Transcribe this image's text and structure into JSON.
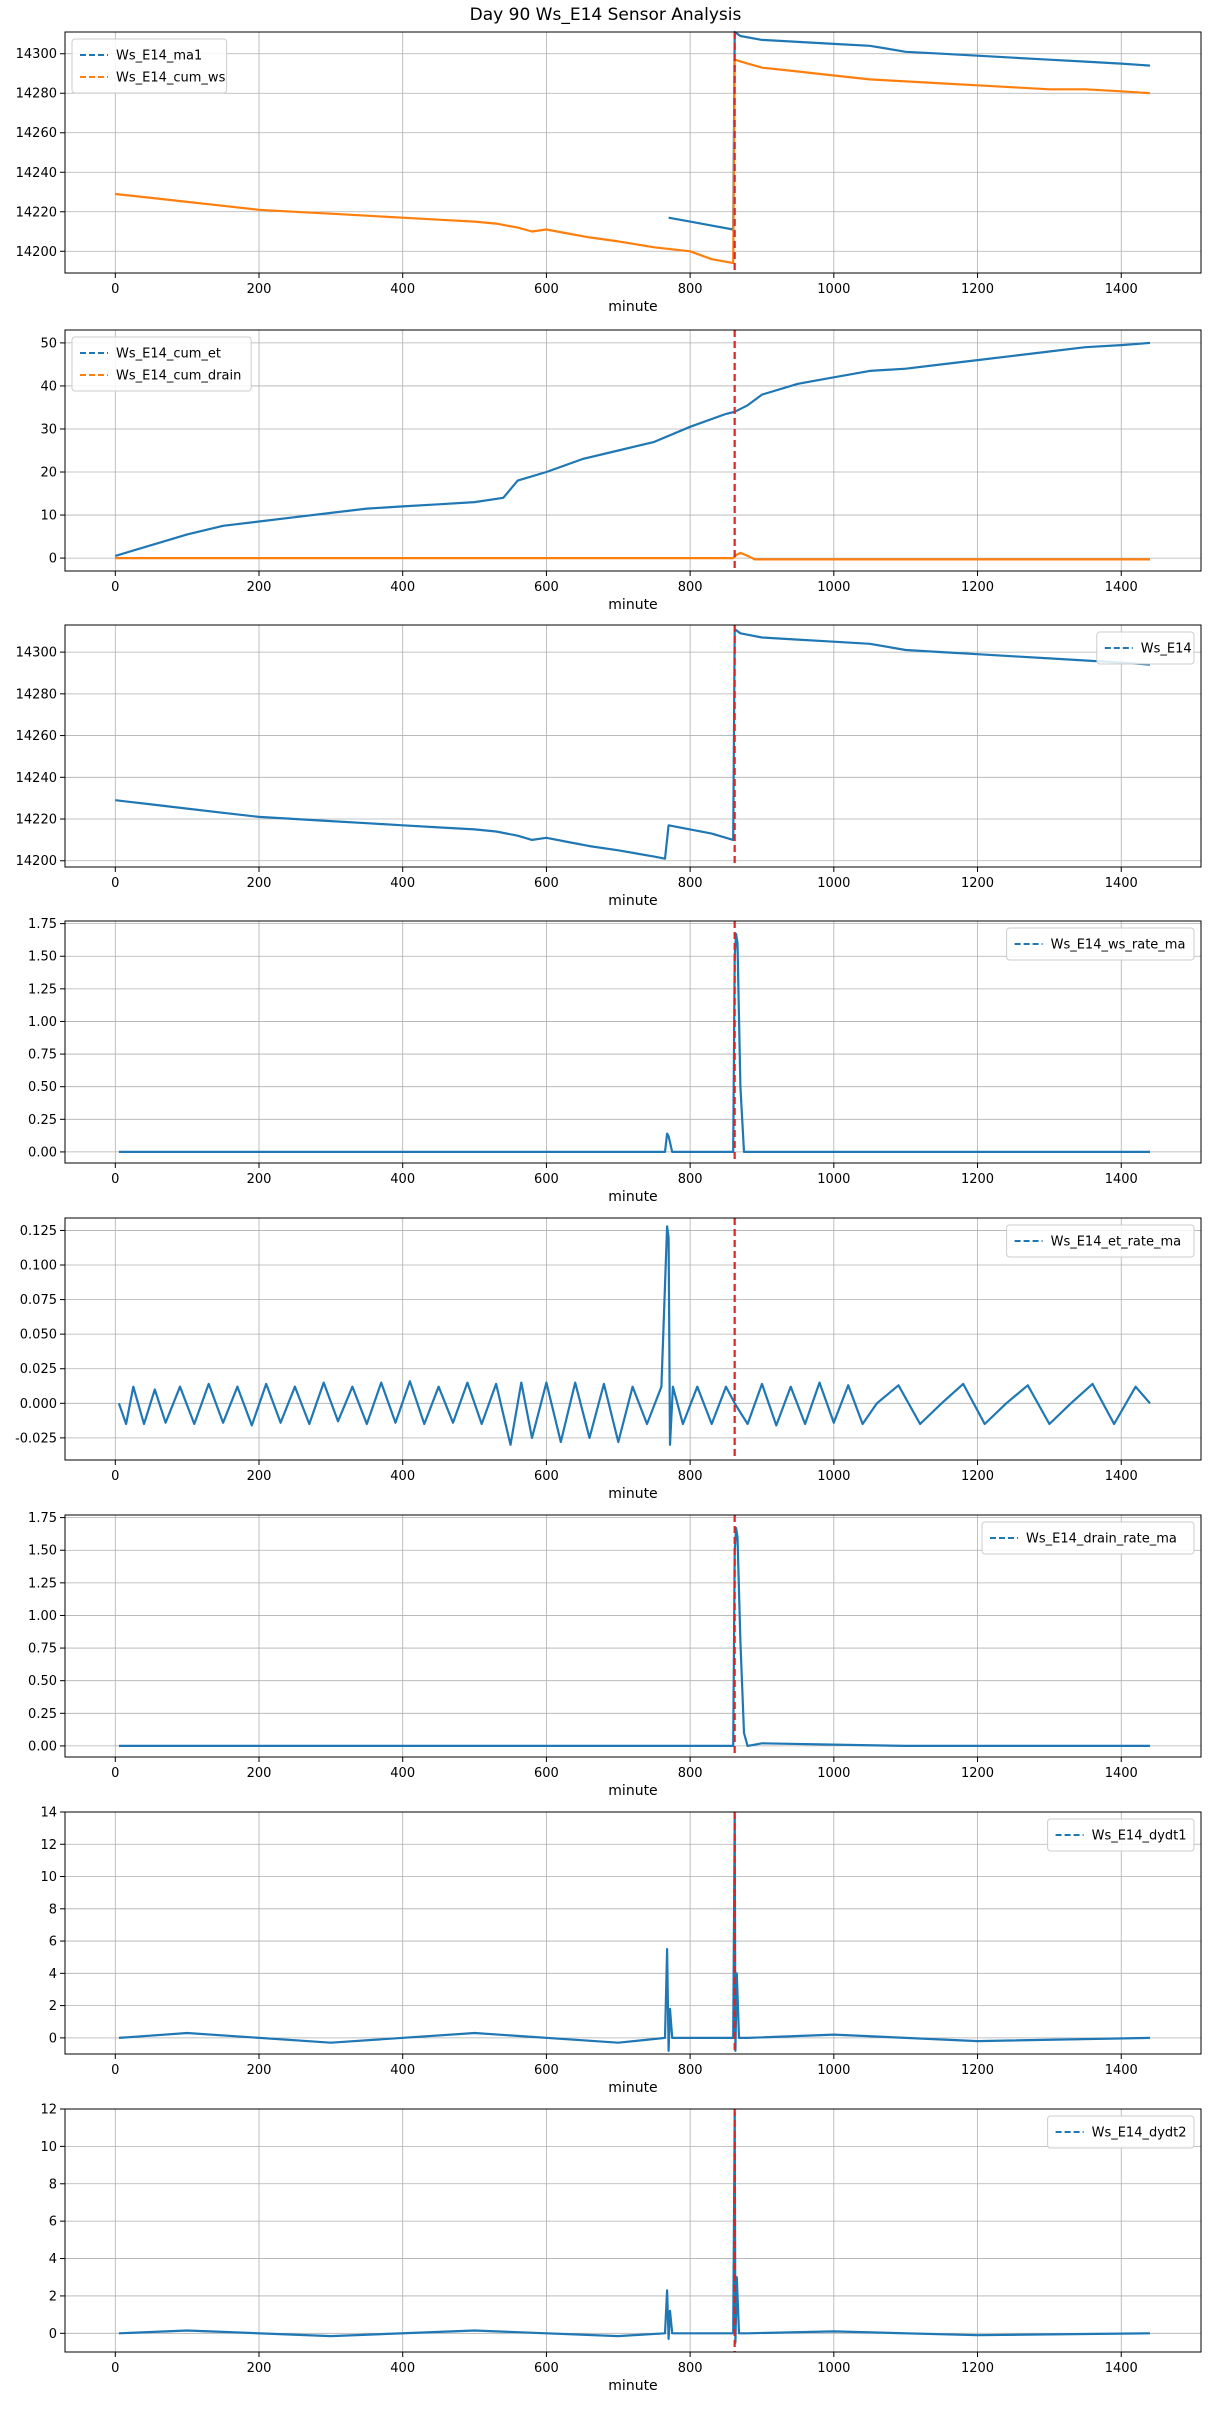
{
  "figure": {
    "title": "Day 90 Ws_E14 Sensor Analysis",
    "event_minute": 862,
    "colors": {
      "series1": "#1f77b4",
      "series2": "#ff7f0e",
      "event_line": "#d62728",
      "grid": "#b0b0b0"
    }
  },
  "chart_data": [
    {
      "type": "line",
      "xlabel": "minute",
      "xlim": [
        -70,
        1511
      ],
      "xticks": [
        0,
        200,
        400,
        600,
        800,
        1000,
        1200,
        1400
      ],
      "ylim": [
        14189,
        14311
      ],
      "yticks": [
        14200,
        14220,
        14240,
        14260,
        14280,
        14300
      ],
      "legend_position": "upper-left",
      "series": [
        {
          "name": "Ws_E14_ma1",
          "color": "#1f77b4",
          "x": [
            770,
            800,
            830,
            860,
            862,
            870,
            900,
            950,
            1000,
            1050,
            1100,
            1150,
            1200,
            1250,
            1300,
            1350,
            1400,
            1440
          ],
          "y": [
            14217,
            14215,
            14213,
            14211,
            14311,
            14309,
            14307,
            14306,
            14305,
            14304,
            14301,
            14300,
            14299,
            14298,
            14297,
            14296,
            14295,
            14294
          ]
        },
        {
          "name": "Ws_E14_cum_ws",
          "color": "#ff7f0e",
          "x": [
            0,
            50,
            100,
            150,
            200,
            250,
            300,
            350,
            400,
            450,
            500,
            530,
            560,
            580,
            600,
            630,
            660,
            700,
            750,
            800,
            830,
            860,
            862,
            880,
            900,
            950,
            1000,
            1050,
            1100,
            1150,
            1200,
            1250,
            1300,
            1350,
            1400,
            1440
          ],
          "y": [
            14229,
            14227,
            14225,
            14223,
            14221,
            14220,
            14219,
            14218,
            14217,
            14216,
            14215,
            14214,
            14212,
            14210,
            14211,
            14209,
            14207,
            14205,
            14202,
            14200,
            14196,
            14194,
            14297,
            14295,
            14293,
            14291,
            14289,
            14287,
            14286,
            14285,
            14284,
            14283,
            14282,
            14282,
            14281,
            14280
          ]
        }
      ]
    },
    {
      "type": "line",
      "xlabel": "minute",
      "xlim": [
        -70,
        1511
      ],
      "xticks": [
        0,
        200,
        400,
        600,
        800,
        1000,
        1200,
        1400
      ],
      "ylim": [
        -3,
        53
      ],
      "yticks": [
        0,
        10,
        20,
        30,
        40,
        50
      ],
      "legend_position": "upper-left",
      "series": [
        {
          "name": "Ws_E14_cum_et",
          "color": "#1f77b4",
          "x": [
            0,
            50,
            100,
            150,
            200,
            250,
            300,
            350,
            400,
            450,
            500,
            540,
            560,
            600,
            650,
            700,
            750,
            800,
            850,
            862,
            880,
            900,
            950,
            1000,
            1050,
            1100,
            1150,
            1200,
            1250,
            1300,
            1350,
            1400,
            1440
          ],
          "y": [
            0.5,
            3,
            5.5,
            7.5,
            8.5,
            9.5,
            10.5,
            11.5,
            12,
            12.5,
            13,
            14,
            18,
            20,
            23,
            25,
            27,
            30.5,
            33.5,
            34,
            35.5,
            38,
            40.5,
            42,
            43.5,
            44,
            45,
            46,
            47,
            48,
            49,
            49.5,
            50
          ]
        },
        {
          "name": "Ws_E14_cum_drain",
          "color": "#ff7f0e",
          "x": [
            0,
            200,
            400,
            600,
            800,
            860,
            865,
            870,
            880,
            890,
            900,
            1000,
            1200,
            1440
          ],
          "y": [
            0,
            0,
            0,
            0,
            0,
            0,
            0.8,
            1.2,
            0.5,
            -0.3,
            -0.3,
            -0.3,
            -0.3,
            -0.3
          ]
        }
      ]
    },
    {
      "type": "line",
      "xlabel": "minute",
      "xlim": [
        -70,
        1511
      ],
      "xticks": [
        0,
        200,
        400,
        600,
        800,
        1000,
        1200,
        1400
      ],
      "ylim": [
        14197,
        14313
      ],
      "yticks": [
        14200,
        14220,
        14240,
        14260,
        14280,
        14300
      ],
      "legend_position": "upper-right",
      "series": [
        {
          "name": "Ws_E14",
          "color": "#1f77b4",
          "x": [
            0,
            50,
            100,
            150,
            200,
            250,
            300,
            350,
            400,
            450,
            500,
            530,
            560,
            580,
            600,
            630,
            660,
            700,
            750,
            765,
            770,
            800,
            830,
            860,
            862,
            870,
            900,
            950,
            1000,
            1050,
            1100,
            1150,
            1200,
            1250,
            1300,
            1350,
            1400,
            1440
          ],
          "y": [
            14229,
            14227,
            14225,
            14223,
            14221,
            14220,
            14219,
            14218,
            14217,
            14216,
            14215,
            14214,
            14212,
            14210,
            14211,
            14209,
            14207,
            14205,
            14202,
            14201,
            14217,
            14215,
            14213,
            14210,
            14311,
            14309,
            14307,
            14306,
            14305,
            14304,
            14301,
            14300,
            14299,
            14298,
            14297,
            14296,
            14295,
            14294
          ]
        }
      ]
    },
    {
      "type": "line",
      "xlabel": "minute",
      "xlim": [
        -70,
        1511
      ],
      "xticks": [
        0,
        200,
        400,
        600,
        800,
        1000,
        1200,
        1400
      ],
      "ylim": [
        -0.085,
        1.77
      ],
      "yticks": [
        0.0,
        0.25,
        0.5,
        0.75,
        1.0,
        1.25,
        1.5,
        1.75
      ],
      "legend_position": "upper-right",
      "series": [
        {
          "name": "Ws_E14_ws_rate_ma",
          "color": "#1f77b4",
          "x": [
            5,
            200,
            400,
            600,
            765,
            768,
            770,
            775,
            800,
            860,
            862,
            864,
            866,
            870,
            875,
            900,
            1100,
            1300,
            1440
          ],
          "y": [
            0,
            0,
            0,
            0,
            0,
            0.14,
            0.12,
            0,
            0,
            0,
            1.5,
            1.67,
            1.6,
            0.5,
            0,
            0,
            0,
            0,
            0
          ]
        }
      ]
    },
    {
      "type": "line",
      "xlabel": "minute",
      "xlim": [
        -70,
        1511
      ],
      "xticks": [
        0,
        200,
        400,
        600,
        800,
        1000,
        1200,
        1400
      ],
      "ylim": [
        -0.041,
        0.134
      ],
      "yticks": [
        -0.025,
        0.0,
        0.025,
        0.05,
        0.075,
        0.1,
        0.125
      ],
      "legend_position": "upper-right",
      "series": [
        {
          "name": "Ws_E14_et_rate_ma",
          "color": "#1f77b4",
          "x": [
            5,
            15,
            25,
            40,
            55,
            70,
            90,
            110,
            130,
            150,
            170,
            190,
            210,
            230,
            250,
            270,
            290,
            310,
            330,
            350,
            370,
            390,
            410,
            430,
            450,
            470,
            490,
            510,
            530,
            550,
            565,
            580,
            600,
            620,
            640,
            660,
            680,
            700,
            720,
            740,
            760,
            768,
            770,
            772,
            776,
            790,
            810,
            830,
            850,
            862,
            880,
            900,
            920,
            940,
            960,
            980,
            1000,
            1020,
            1040,
            1060,
            1090,
            1120,
            1150,
            1180,
            1210,
            1240,
            1270,
            1300,
            1330,
            1360,
            1390,
            1420,
            1440
          ],
          "y": [
            0,
            -0.015,
            0.012,
            -0.015,
            0.01,
            -0.014,
            0.012,
            -0.015,
            0.014,
            -0.014,
            0.012,
            -0.016,
            0.014,
            -0.014,
            0.012,
            -0.015,
            0.015,
            -0.013,
            0.012,
            -0.015,
            0.015,
            -0.014,
            0.016,
            -0.015,
            0.012,
            -0.014,
            0.015,
            -0.015,
            0.014,
            -0.03,
            0.015,
            -0.025,
            0.015,
            -0.028,
            0.015,
            -0.025,
            0.014,
            -0.028,
            0.012,
            -0.015,
            0.012,
            0.128,
            0.12,
            -0.03,
            0.012,
            -0.015,
            0.012,
            -0.015,
            0.012,
            0,
            -0.015,
            0.014,
            -0.016,
            0.012,
            -0.015,
            0.015,
            -0.014,
            0.013,
            -0.015,
            0,
            0.013,
            -0.015,
            0,
            0.014,
            -0.015,
            0,
            0.013,
            -0.015,
            0,
            0.014,
            -0.015,
            0.012,
            0
          ]
        }
      ]
    },
    {
      "type": "line",
      "xlabel": "minute",
      "xlim": [
        -70,
        1511
      ],
      "xticks": [
        0,
        200,
        400,
        600,
        800,
        1000,
        1200,
        1400
      ],
      "ylim": [
        -0.085,
        1.77
      ],
      "yticks": [
        0.0,
        0.25,
        0.5,
        0.75,
        1.0,
        1.25,
        1.5,
        1.75
      ],
      "legend_position": "upper-right",
      "series": [
        {
          "name": "Ws_E14_drain_rate_ma",
          "color": "#1f77b4",
          "x": [
            5,
            200,
            400,
            600,
            800,
            860,
            862,
            864,
            866,
            870,
            875,
            880,
            900,
            1100,
            1300,
            1440
          ],
          "y": [
            0,
            0,
            0,
            0,
            0,
            0,
            1.5,
            1.67,
            1.6,
            0.8,
            0.1,
            0,
            0.02,
            0,
            0,
            0
          ]
        }
      ]
    },
    {
      "type": "line",
      "xlabel": "minute",
      "xlim": [
        -70,
        1511
      ],
      "xticks": [
        0,
        200,
        400,
        600,
        800,
        1000,
        1200,
        1400
      ],
      "ylim": [
        -1.0,
        14.0
      ],
      "yticks": [
        0,
        2,
        4,
        6,
        8,
        10,
        12,
        14
      ],
      "legend_position": "upper-right",
      "series": [
        {
          "name": "Ws_E14_dydt1",
          "color": "#1f77b4",
          "x": [
            5,
            100,
            300,
            500,
            700,
            765,
            768,
            770,
            772,
            775,
            800,
            860,
            862,
            863,
            865,
            868,
            880,
            1000,
            1200,
            1440
          ],
          "y": [
            0,
            0.3,
            -0.3,
            0.3,
            -0.3,
            0,
            5.5,
            -0.8,
            1.8,
            0,
            0,
            0,
            13.8,
            -0.8,
            4,
            0,
            0,
            0.2,
            -0.2,
            0
          ]
        }
      ]
    },
    {
      "type": "line",
      "xlabel": "minute",
      "xlim": [
        -70,
        1511
      ],
      "xticks": [
        0,
        200,
        400,
        600,
        800,
        1000,
        1200,
        1400
      ],
      "ylim": [
        -1.0,
        12.0
      ],
      "yticks": [
        0,
        2,
        4,
        6,
        8,
        10,
        12
      ],
      "legend_position": "upper-right",
      "series": [
        {
          "name": "Ws_E14_dydt2",
          "color": "#1f77b4",
          "x": [
            5,
            100,
            300,
            500,
            700,
            765,
            768,
            770,
            772,
            775,
            800,
            860,
            862,
            863,
            865,
            868,
            880,
            1000,
            1200,
            1440
          ],
          "y": [
            0,
            0.15,
            -0.15,
            0.15,
            -0.15,
            0,
            2.3,
            -0.3,
            1.2,
            0,
            0,
            0,
            11.8,
            -0.5,
            3,
            0,
            0,
            0.1,
            -0.1,
            0
          ]
        }
      ]
    }
  ]
}
